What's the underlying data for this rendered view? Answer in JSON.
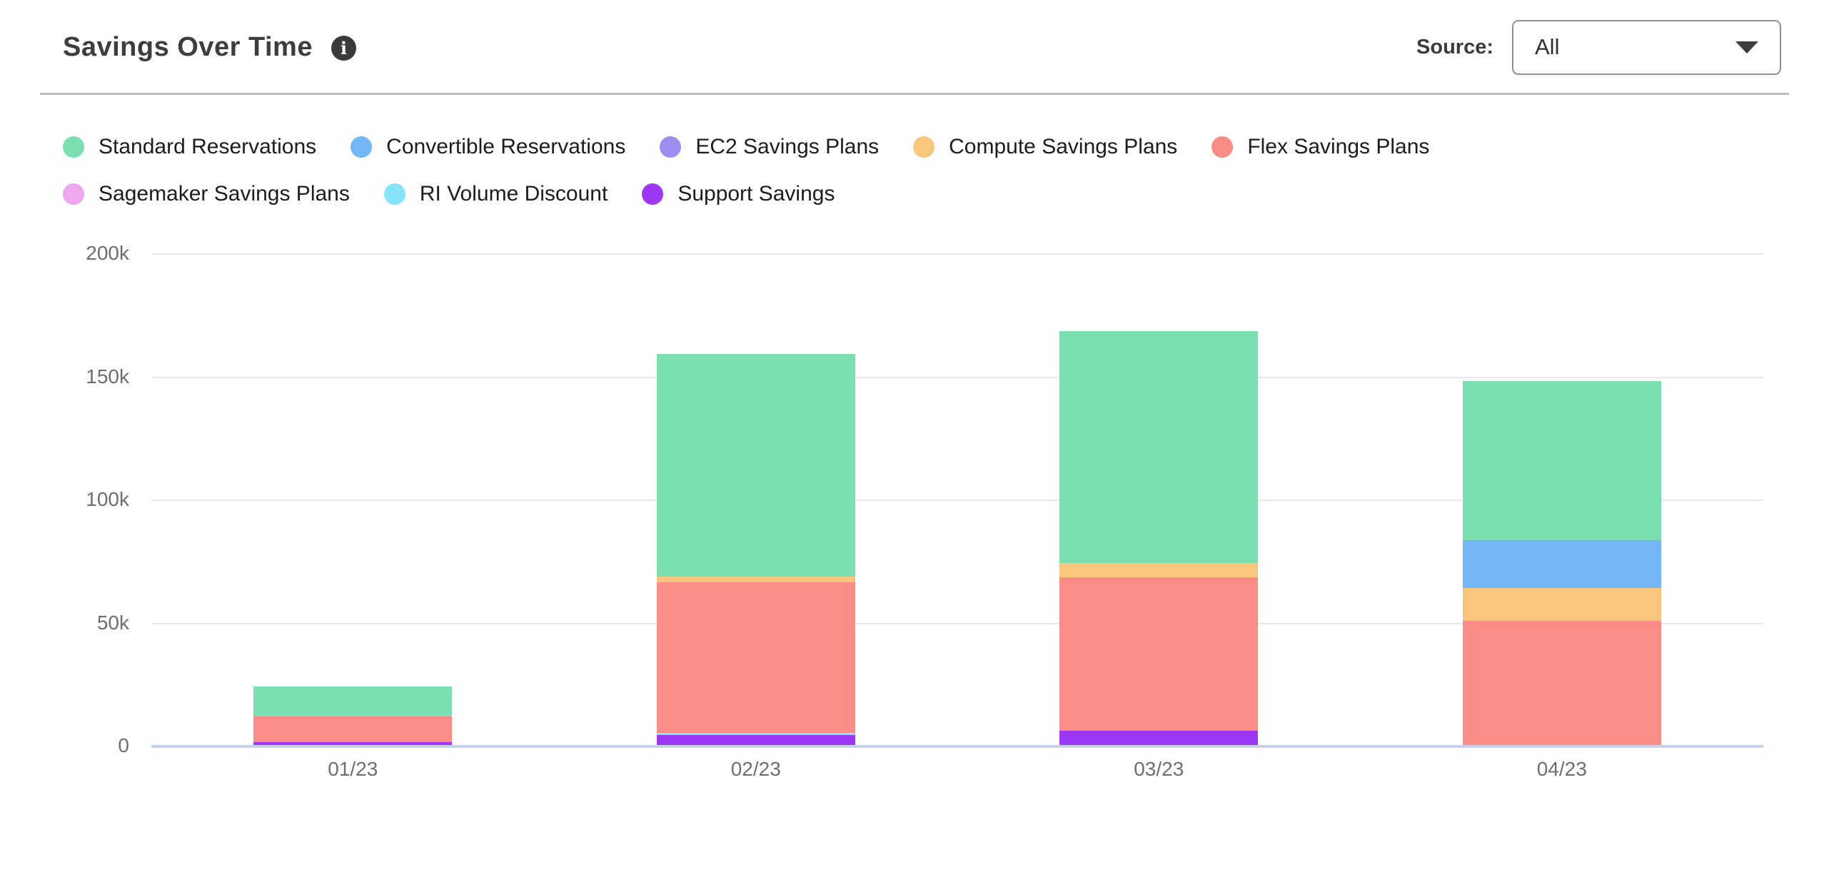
{
  "header": {
    "title": "Savings Over Time",
    "info_glyph": "i",
    "source_label": "Source:",
    "source_value": "All"
  },
  "chart_data": {
    "type": "bar",
    "stacked": true,
    "title": "Savings Over Time",
    "categories": [
      "01/23",
      "02/23",
      "03/23",
      "04/23"
    ],
    "series": [
      {
        "name": "Standard Reservations",
        "color": "#7cdfb2",
        "values": [
          12300,
          90500,
          94000,
          64500
        ]
      },
      {
        "name": "Convertible Reservations",
        "color": "#74b7f7",
        "values": [
          0,
          0,
          0,
          19400
        ]
      },
      {
        "name": "EC2 Savings Plans",
        "color": "#9d8df1",
        "values": [
          0,
          0,
          0,
          0
        ]
      },
      {
        "name": "Compute Savings Plans",
        "color": "#f8c67d",
        "values": [
          0,
          2300,
          5800,
          13300
        ]
      },
      {
        "name": "Flex Savings Plans",
        "color": "#fb8c86",
        "values": [
          10300,
          61000,
          62500,
          50500
        ]
      },
      {
        "name": "Sagemaker Savings Plans",
        "color": "#efa8ef",
        "values": [
          0,
          0,
          0,
          0
        ]
      },
      {
        "name": "RI Volume Discount",
        "color": "#85e4f7",
        "values": [
          0,
          800,
          0,
          0
        ]
      },
      {
        "name": "Support Savings",
        "color": "#9c38f4",
        "values": [
          1200,
          4200,
          5700,
          0
        ]
      }
    ],
    "stack_order_note": "stacked bottom-to-top in reverse legend order",
    "yticks": [
      {
        "label": "200k",
        "value": 200000
      },
      {
        "label": "150k",
        "value": 150000
      },
      {
        "label": "100k",
        "value": 100000
      },
      {
        "label": "50k",
        "value": 50000
      },
      {
        "label": "0",
        "value": 0
      }
    ],
    "ylim": [
      0,
      200000
    ],
    "xlabel": "",
    "ylabel": "",
    "grid": true,
    "grid_color": "#e8e8e8",
    "axis_color": "#c9d0ec",
    "legend_position": "top"
  }
}
